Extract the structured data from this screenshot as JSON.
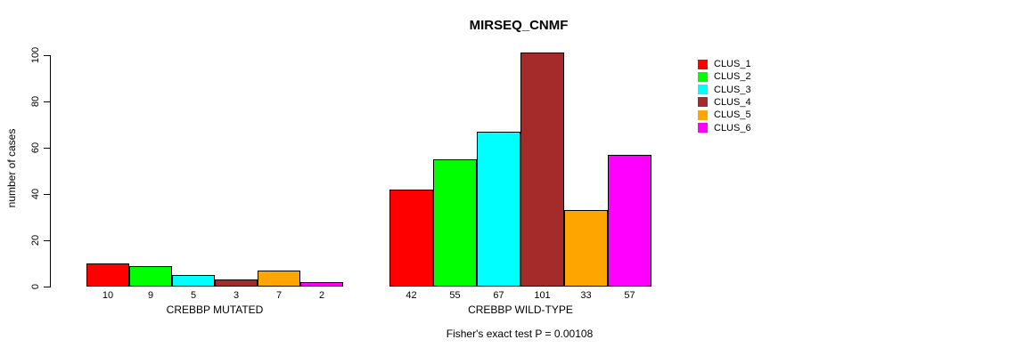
{
  "chart_data": {
    "type": "bar",
    "title": "MIRSEQ_CNMF",
    "ylabel": "number of cases",
    "xlabel": "",
    "ylim": [
      0,
      100
    ],
    "yticks": [
      0,
      20,
      40,
      60,
      80,
      100
    ],
    "grid": false,
    "legend_position": "right",
    "legend": [
      {
        "label": "CLUS_1",
        "color": "#FF0000"
      },
      {
        "label": "CLUS_2",
        "color": "#00FF00"
      },
      {
        "label": "CLUS_3",
        "color": "#00FFFF"
      },
      {
        "label": "CLUS_4",
        "color": "#A52A2A"
      },
      {
        "label": "CLUS_5",
        "color": "#FFA500"
      },
      {
        "label": "CLUS_6",
        "color": "#FF00FF"
      }
    ],
    "series_colors": [
      "#FF0000",
      "#00FF00",
      "#00FFFF",
      "#A52A2A",
      "#FFA500",
      "#FF00FF"
    ],
    "groups": [
      {
        "label": "CREBBP MUTATED",
        "values": [
          10,
          9,
          5,
          3,
          7,
          2
        ]
      },
      {
        "label": "CREBBP WILD-TYPE",
        "values": [
          42,
          55,
          67,
          101,
          33,
          57
        ]
      }
    ],
    "footnote": "Fisher's exact test P = 0.00108",
    "axis_color": "#000000",
    "bar_border_color": "#000000",
    "background_color": "#FFFFFF"
  }
}
